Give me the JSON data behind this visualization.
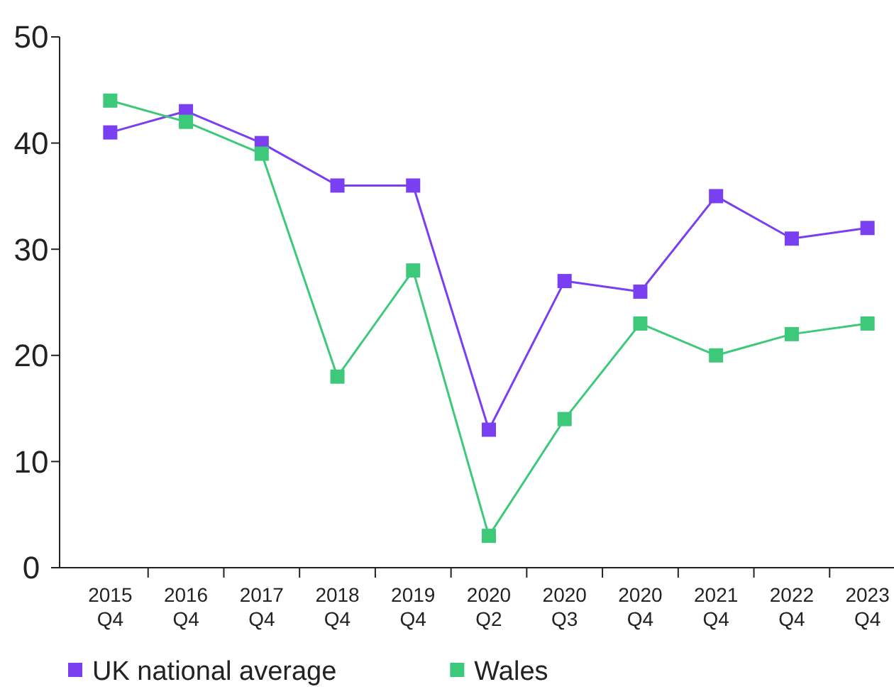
{
  "chart_data": {
    "type": "line",
    "categories": [
      "2015 Q4",
      "2016 Q4",
      "2017 Q4",
      "2018 Q4",
      "2019 Q4",
      "2020 Q2",
      "2020 Q3",
      "2020 Q4",
      "2021 Q4",
      "2022 Q4",
      "2023 Q4"
    ],
    "series": [
      {
        "name": "UK national average",
        "color": "#7b3ff2",
        "values": [
          41,
          43,
          40,
          36,
          36,
          13,
          27,
          26,
          35,
          31,
          32
        ]
      },
      {
        "name": "Wales",
        "color": "#3ec97a",
        "values": [
          44,
          42,
          39,
          18,
          28,
          3,
          14,
          23,
          20,
          22,
          23
        ]
      }
    ],
    "ylim": [
      0,
      50
    ],
    "yticks": [
      0,
      10,
      20,
      30,
      40,
      50
    ],
    "grid": false,
    "legend": "bottom",
    "marker": "square",
    "line_style": "solid"
  }
}
